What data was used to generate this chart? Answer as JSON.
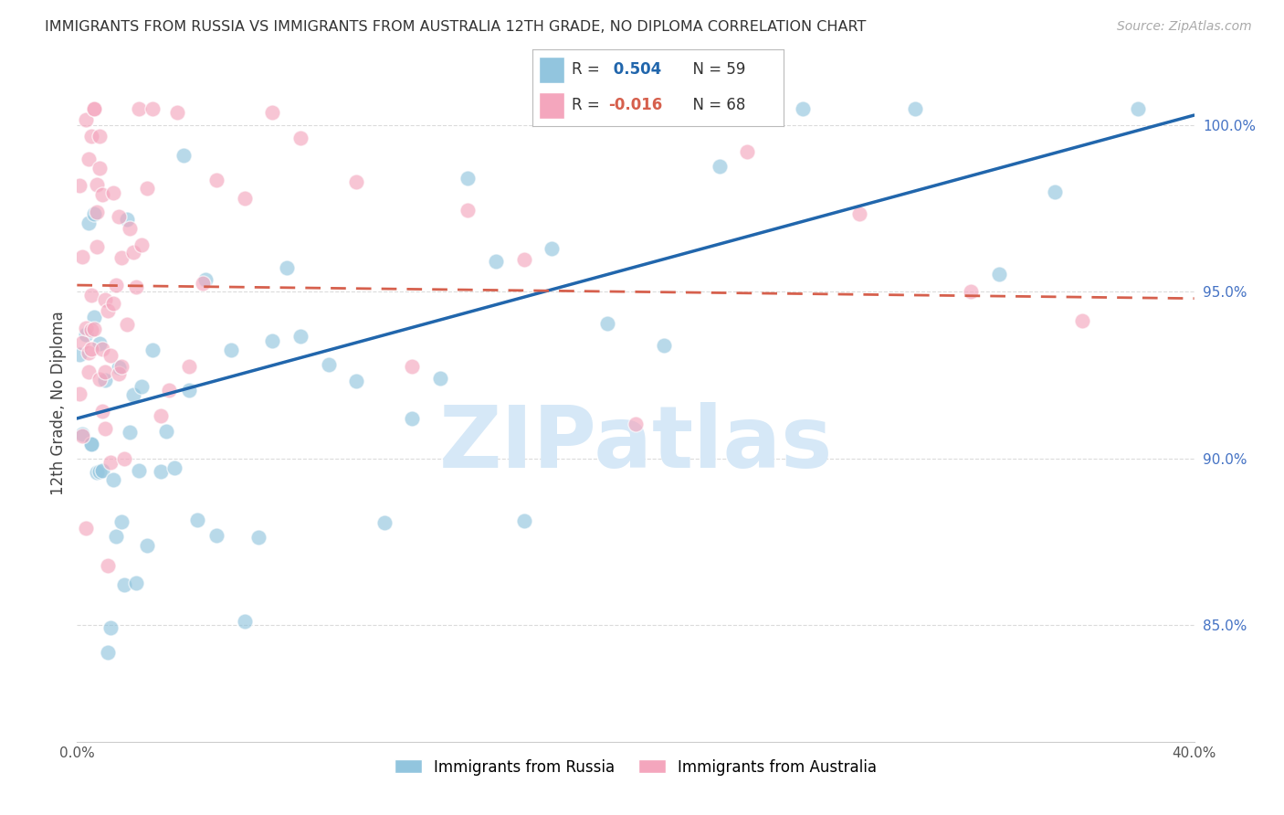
{
  "title": "IMMIGRANTS FROM RUSSIA VS IMMIGRANTS FROM AUSTRALIA 12TH GRADE, NO DIPLOMA CORRELATION CHART",
  "source": "Source: ZipAtlas.com",
  "ylabel": "12th Grade, No Diploma",
  "xlim": [
    0.0,
    0.4
  ],
  "ylim": [
    0.815,
    1.018
  ],
  "ytick_vals": [
    0.85,
    0.9,
    0.95,
    1.0
  ],
  "ytick_labels": [
    "85.0%",
    "90.0%",
    "95.0%",
    "100.0%"
  ],
  "russia_color": "#92c5de",
  "australia_color": "#f4a6bd",
  "russia_line_color": "#2166ac",
  "australia_line_color": "#d6604d",
  "watermark_color": "#d6e8f7",
  "grid_color": "#cccccc",
  "background_color": "#ffffff",
  "russia_R": 0.504,
  "russia_N": 59,
  "australia_R": -0.016,
  "australia_N": 68,
  "russia_line_x0": 0.0,
  "russia_line_y0": 0.912,
  "russia_line_x1": 0.4,
  "russia_line_y1": 1.003,
  "australia_line_x0": 0.0,
  "australia_line_y0": 0.952,
  "australia_line_x1": 0.4,
  "australia_line_y1": 0.948
}
